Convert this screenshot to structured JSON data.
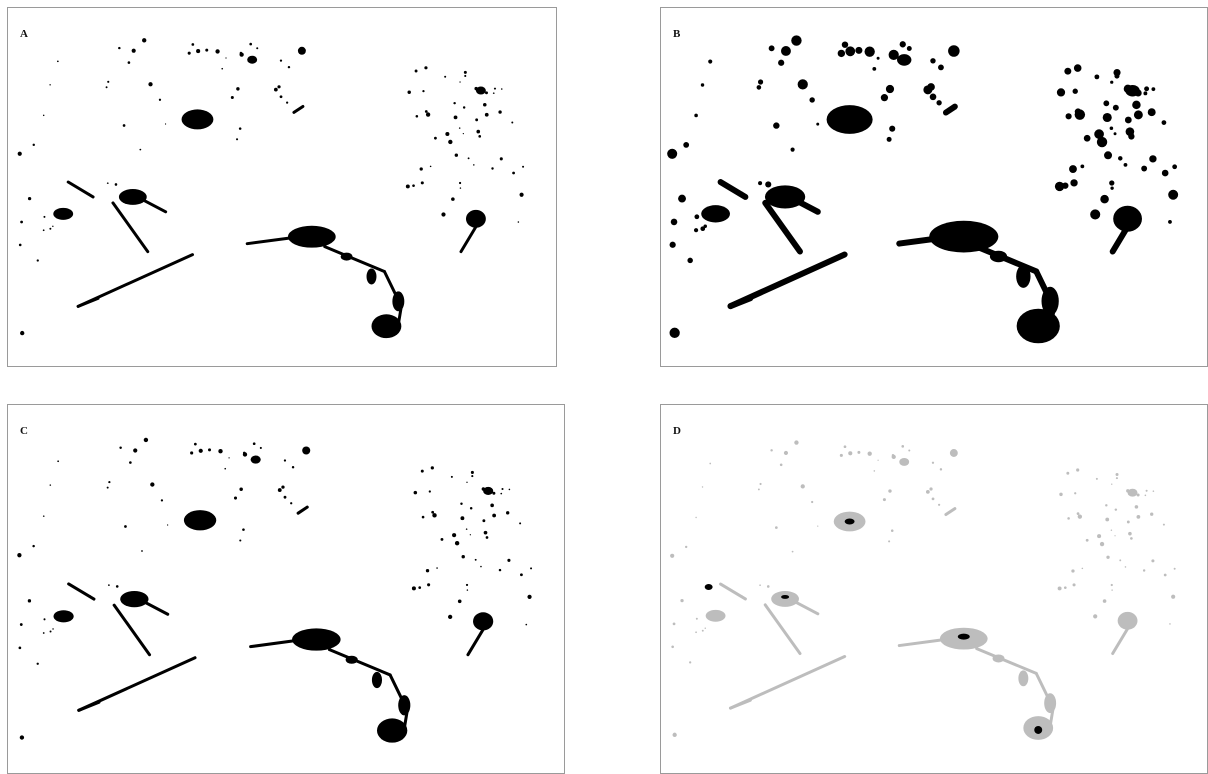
{
  "panels": [
    {
      "label": "A",
      "style": "thin-black"
    },
    {
      "label": "B",
      "style": "dilated-black"
    },
    {
      "label": "C",
      "style": "thin-black"
    },
    {
      "label": "D",
      "style": "gray-overlay"
    }
  ],
  "colors": {
    "ink": "#000000",
    "overlay": "#bdbdbd",
    "border": "#9a9a9a"
  }
}
